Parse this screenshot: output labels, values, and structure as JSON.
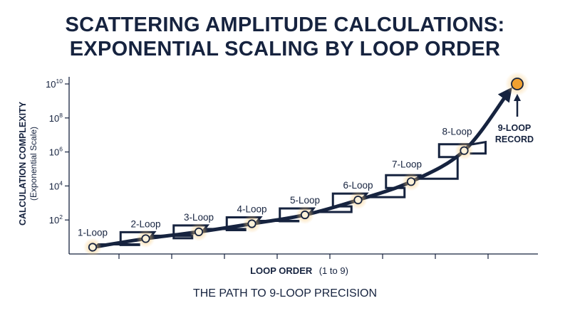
{
  "title_line1": "SCATTERING AMPLITUDE CALCULATIONS:",
  "title_line2": "EXPONENTIAL SCALING BY LOOP ORDER",
  "subtitle": "THE PATH TO 9-LOOP PRECISION",
  "colors": {
    "navy": "#16233f",
    "marker_fill": "#fdf1d8",
    "marker_stroke": "#c98a1c",
    "glow": "#f7c97a",
    "record_fill": "#f0a030"
  },
  "chart_data": {
    "type": "line",
    "scale": "log",
    "title": "SCATTERING AMPLITUDE CALCULATIONS: EXPONENTIAL SCALING BY LOOP ORDER",
    "ylabel": "CALCULATION COMPLEXITY",
    "ylabel_sub": "(Exponential Scale)",
    "xlabel": "LOOP ORDER",
    "xlabel_sub": "(1 to 9)",
    "y_ticks": [
      {
        "base": "10",
        "exp": "2",
        "value": 100
      },
      {
        "base": "10",
        "exp": "4",
        "value": 10000
      },
      {
        "base": "10",
        "exp": "6",
        "value": 1000000
      },
      {
        "base": "10",
        "exp": "8",
        "value": 100000000
      },
      {
        "base": "10",
        "exp": "10",
        "value": 10000000000
      }
    ],
    "ylim": [
      1,
      10000000000
    ],
    "x": [
      1,
      2,
      3,
      4,
      5,
      6,
      7,
      8,
      9
    ],
    "labels": [
      "1-Loop",
      "2-Loop",
      "3-Loop",
      "4-Loop",
      "5-Loop",
      "6-Loop",
      "7-Loop",
      "8-Loop",
      ""
    ],
    "values": [
      2.5,
      8,
      20,
      60,
      200,
      1500,
      18000,
      1200000,
      10000000000
    ],
    "callout": [
      "9-LOOP",
      "RECORD"
    ],
    "grid": false
  }
}
